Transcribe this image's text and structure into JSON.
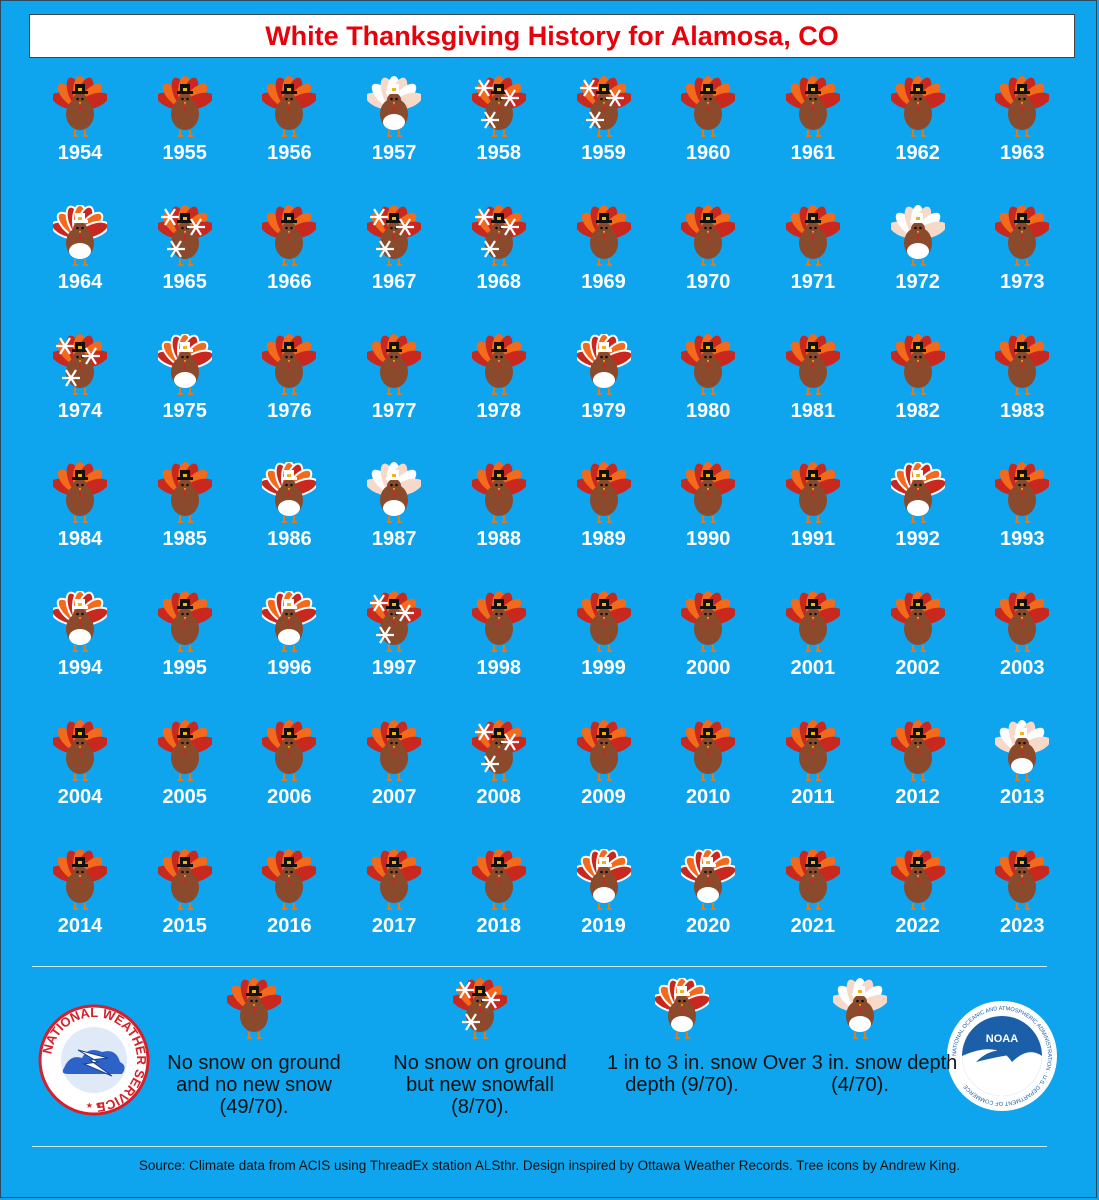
{
  "title": "White Thanksgiving History for Alamosa, CO",
  "categories": {
    "none": "No snow on ground and no new snow (49/70).",
    "new": "No snow on ground but new snowfall (8/70).",
    "light": "1 in to 3 in. snow depth (9/70).",
    "heavy": "Over 3 in. snow depth (4/70)."
  },
  "years": [
    {
      "year": "1954",
      "cat": "none"
    },
    {
      "year": "1955",
      "cat": "none"
    },
    {
      "year": "1956",
      "cat": "none"
    },
    {
      "year": "1957",
      "cat": "heavy"
    },
    {
      "year": "1958",
      "cat": "new"
    },
    {
      "year": "1959",
      "cat": "new"
    },
    {
      "year": "1960",
      "cat": "none"
    },
    {
      "year": "1961",
      "cat": "none"
    },
    {
      "year": "1962",
      "cat": "none"
    },
    {
      "year": "1963",
      "cat": "none"
    },
    {
      "year": "1964",
      "cat": "light"
    },
    {
      "year": "1965",
      "cat": "new"
    },
    {
      "year": "1966",
      "cat": "none"
    },
    {
      "year": "1967",
      "cat": "new"
    },
    {
      "year": "1968",
      "cat": "new"
    },
    {
      "year": "1969",
      "cat": "none"
    },
    {
      "year": "1970",
      "cat": "none"
    },
    {
      "year": "1971",
      "cat": "none"
    },
    {
      "year": "1972",
      "cat": "heavy"
    },
    {
      "year": "1973",
      "cat": "none"
    },
    {
      "year": "1974",
      "cat": "new"
    },
    {
      "year": "1975",
      "cat": "light"
    },
    {
      "year": "1976",
      "cat": "none"
    },
    {
      "year": "1977",
      "cat": "none"
    },
    {
      "year": "1978",
      "cat": "none"
    },
    {
      "year": "1979",
      "cat": "light"
    },
    {
      "year": "1980",
      "cat": "none"
    },
    {
      "year": "1981",
      "cat": "none"
    },
    {
      "year": "1982",
      "cat": "none"
    },
    {
      "year": "1983",
      "cat": "none"
    },
    {
      "year": "1984",
      "cat": "none"
    },
    {
      "year": "1985",
      "cat": "none"
    },
    {
      "year": "1986",
      "cat": "light"
    },
    {
      "year": "1987",
      "cat": "heavy"
    },
    {
      "year": "1988",
      "cat": "none"
    },
    {
      "year": "1989",
      "cat": "none"
    },
    {
      "year": "1990",
      "cat": "none"
    },
    {
      "year": "1991",
      "cat": "none"
    },
    {
      "year": "1992",
      "cat": "light"
    },
    {
      "year": "1993",
      "cat": "none"
    },
    {
      "year": "1994",
      "cat": "light"
    },
    {
      "year": "1995",
      "cat": "none"
    },
    {
      "year": "1996",
      "cat": "light"
    },
    {
      "year": "1997",
      "cat": "new"
    },
    {
      "year": "1998",
      "cat": "none"
    },
    {
      "year": "1999",
      "cat": "none"
    },
    {
      "year": "2000",
      "cat": "none"
    },
    {
      "year": "2001",
      "cat": "none"
    },
    {
      "year": "2002",
      "cat": "none"
    },
    {
      "year": "2003",
      "cat": "none"
    },
    {
      "year": "2004",
      "cat": "none"
    },
    {
      "year": "2005",
      "cat": "none"
    },
    {
      "year": "2006",
      "cat": "none"
    },
    {
      "year": "2007",
      "cat": "none"
    },
    {
      "year": "2008",
      "cat": "new"
    },
    {
      "year": "2009",
      "cat": "none"
    },
    {
      "year": "2010",
      "cat": "none"
    },
    {
      "year": "2011",
      "cat": "none"
    },
    {
      "year": "2012",
      "cat": "none"
    },
    {
      "year": "2013",
      "cat": "heavy"
    },
    {
      "year": "2014",
      "cat": "none"
    },
    {
      "year": "2015",
      "cat": "none"
    },
    {
      "year": "2016",
      "cat": "none"
    },
    {
      "year": "2017",
      "cat": "none"
    },
    {
      "year": "2018",
      "cat": "none"
    },
    {
      "year": "2019",
      "cat": "light"
    },
    {
      "year": "2020",
      "cat": "light"
    },
    {
      "year": "2021",
      "cat": "none"
    },
    {
      "year": "2022",
      "cat": "none"
    },
    {
      "year": "2023",
      "cat": "none"
    }
  ],
  "logos": {
    "nws": "NATIONAL WEATHER SERVICE",
    "noaa_center": "NOAA",
    "noaa_ring": "NATIONAL OCEANIC AND ATMOSPHERIC ADMINISTRATION · U.S. DEPARTMENT OF COMMERCE"
  },
  "source": "Source: Climate data from ACIS using ThreadEx station ALSthr. Design inspired by Ottawa Weather Records. Tree icons by Andrew King.",
  "colors": {
    "background": "#0ea5ee",
    "title": "#e8000b",
    "year_text": "#ffffff",
    "turkey_body": "#8b4a2b",
    "feather_orange": "#f26a1b",
    "feather_red": "#c8281e",
    "snow": "#ffffff"
  },
  "icons": [
    "turkey-icon",
    "snowflake-icon",
    "nws-logo",
    "noaa-logo"
  ]
}
